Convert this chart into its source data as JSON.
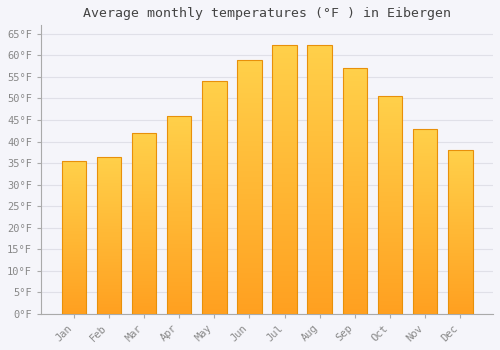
{
  "title": "Average monthly temperatures (°F ) in Eibergen",
  "months": [
    "Jan",
    "Feb",
    "Mar",
    "Apr",
    "May",
    "Jun",
    "Jul",
    "Aug",
    "Sep",
    "Oct",
    "Nov",
    "Dec"
  ],
  "values": [
    35.5,
    36.5,
    42.0,
    46.0,
    54.0,
    59.0,
    62.5,
    62.5,
    57.0,
    50.5,
    43.0,
    38.0
  ],
  "bar_color_top": "#FFD04A",
  "bar_color_bottom": "#FFA020",
  "bar_edge_color": "#E8900A",
  "background_color": "#F5F5FA",
  "plot_bg_color": "#F5F5FA",
  "grid_color": "#E0E0E8",
  "ylim": [
    0,
    67
  ],
  "yticks": [
    0,
    5,
    10,
    15,
    20,
    25,
    30,
    35,
    40,
    45,
    50,
    55,
    60,
    65
  ],
  "title_fontsize": 9.5,
  "tick_fontsize": 7.5,
  "tick_color": "#888888",
  "title_color": "#444444",
  "font_family": "monospace",
  "bar_width": 0.7
}
